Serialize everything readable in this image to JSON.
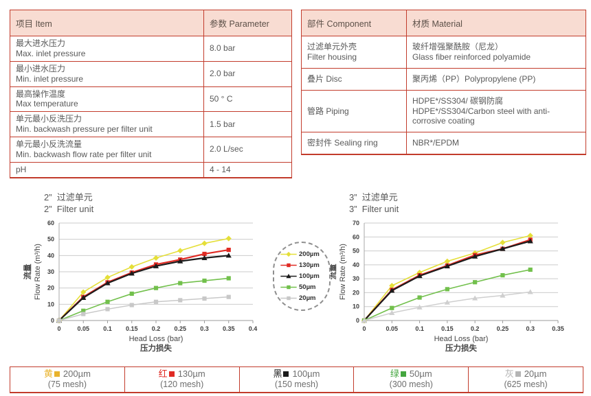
{
  "colors": {
    "table_border": "#c23b2b",
    "table_header_bg": "#f8dcd2",
    "body_text": "#595959"
  },
  "param_table": {
    "headers": [
      "项目 Item",
      "参数 Parameter"
    ],
    "rows": [
      {
        "c1": [
          "最大进水压力",
          "Max. inlet pressure"
        ],
        "c2": [
          "8.0 bar"
        ]
      },
      {
        "c1": [
          "最小进水压力",
          "Min. inlet pressure"
        ],
        "c2": [
          "2.0 bar"
        ]
      },
      {
        "c1": [
          "最高操作温度",
          "Max temperature"
        ],
        "c2": [
          "50 ° C"
        ]
      },
      {
        "c1": [
          "单元最小反洗压力",
          "Min. backwash pressure per filter unit"
        ],
        "c2": [
          "1.5 bar"
        ]
      },
      {
        "c1": [
          "单元最小反洗流量",
          "Min. backwash flow rate per filter unit"
        ],
        "c2": [
          "2.0 L/sec"
        ]
      },
      {
        "c1": [
          "pH"
        ],
        "c2": [
          "4 - 14"
        ]
      }
    ]
  },
  "material_table": {
    "headers": [
      "部件 Component",
      "材质 Material"
    ],
    "rows": [
      {
        "c1": [
          "过滤单元外壳",
          "Filter housing"
        ],
        "c2": [
          "玻纤增强聚酰胺（尼龙）",
          "Glass fiber reinforced polyamide"
        ]
      },
      {
        "c1": [
          "叠片 Disc"
        ],
        "c2": [
          "聚丙烯（PP）Polypropylene (PP)"
        ]
      },
      {
        "c1": [
          "管路 Piping"
        ],
        "c2": [
          "HDPE*/SS304/ 碳钢防腐",
          "HDPE*/SS304/Carbon steel with anti-corrosive coating"
        ]
      },
      {
        "c1": [
          "密封件 Sealing ring"
        ],
        "c2": [
          "NBR*/EPDM"
        ]
      }
    ]
  },
  "chart_data": [
    {
      "type": "line",
      "title_zh": "2”  过滤单元",
      "title_en": "2”  Filter unit",
      "xlabel_en": "Head Loss (bar)",
      "xlabel_zh": "压力损失",
      "ylabel_zh": "流量",
      "ylabel_en": "Flow Rate (m³/h)",
      "xlim": [
        0,
        0.4
      ],
      "ylim": [
        0,
        60
      ],
      "xticks": [
        0,
        0.05,
        0.1,
        0.15,
        0.2,
        0.25,
        0.3,
        0.35,
        0.4
      ],
      "yticks": [
        0,
        10,
        20,
        30,
        40,
        50,
        60
      ],
      "grid": "horizontal",
      "x": [
        0,
        0.05,
        0.1,
        0.15,
        0.2,
        0.25,
        0.3,
        0.35
      ],
      "series": [
        {
          "name": "200µm",
          "color": "#e5df38",
          "marker": "diamond",
          "width": 1.6,
          "values": [
            0,
            17.5,
            26.5,
            33,
            38.5,
            43,
            47.5,
            50.5
          ]
        },
        {
          "name": "130µm",
          "color": "#e02b24",
          "marker": "square",
          "width": 2.2,
          "values": [
            0,
            14.5,
            23.5,
            29.5,
            34.5,
            37.5,
            41,
            43.5
          ]
        },
        {
          "name": "100µm",
          "color": "#1c1c1c",
          "marker": "triangle",
          "width": 2.2,
          "values": [
            0,
            14,
            23,
            29,
            33.5,
            36.5,
            38.5,
            40
          ]
        },
        {
          "name": "50µm",
          "color": "#72c04c",
          "marker": "square",
          "width": 1.6,
          "values": [
            0,
            6,
            11.5,
            16.5,
            20,
            23,
            24.5,
            26
          ]
        },
        {
          "name": "20µm",
          "color": "#c8c8c8",
          "marker": "square",
          "width": 1.5,
          "values": [
            0,
            4,
            7,
            9.5,
            11.5,
            12.5,
            13.5,
            14.5
          ]
        }
      ]
    },
    {
      "type": "line",
      "title_zh": "3”  过滤单元",
      "title_en": "3”  Filter unit",
      "xlabel_en": "Head Loss (bar)",
      "xlabel_zh": "压力损失",
      "ylabel_zh": "流量",
      "ylabel_en": "Flow Rate (m³/h)",
      "xlim": [
        0,
        0.35
      ],
      "ylim": [
        0,
        70
      ],
      "xticks": [
        0,
        0.05,
        0.1,
        0.15,
        0.2,
        0.25,
        0.3,
        0.35
      ],
      "yticks": [
        0,
        10,
        20,
        30,
        40,
        50,
        60,
        70
      ],
      "grid": "horizontal",
      "x": [
        0,
        0.05,
        0.1,
        0.15,
        0.2,
        0.25,
        0.3
      ],
      "series": [
        {
          "name": "200µm",
          "color": "#e5df38",
          "marker": "diamond",
          "width": 1.6,
          "values": [
            0,
            25,
            34.5,
            42.5,
            48.5,
            56,
            61
          ]
        },
        {
          "name": "130µm",
          "color": "#e02b24",
          "marker": "square",
          "width": 2.2,
          "values": [
            0,
            22,
            32.5,
            39.5,
            47,
            51.5,
            58
          ]
        },
        {
          "name": "100µm",
          "color": "#1c1c1c",
          "marker": "triangle",
          "width": 2.2,
          "values": [
            0,
            21.5,
            32,
            39,
            46,
            51.5,
            57
          ]
        },
        {
          "name": "50µm",
          "color": "#72c04c",
          "marker": "square",
          "width": 1.6,
          "values": [
            0,
            9,
            16.5,
            22.5,
            27.5,
            32.5,
            36.5
          ]
        },
        {
          "name": "20µm",
          "color": "#cfcfcf",
          "marker": "triangle",
          "width": 1.5,
          "values": [
            0,
            5.5,
            9.5,
            13,
            16,
            18,
            20.5
          ]
        }
      ]
    }
  ],
  "mid_legend": {
    "entries": [
      {
        "label": "200µm",
        "color": "#e5df38",
        "marker": "diamond"
      },
      {
        "label": "130µm",
        "color": "#e02b24",
        "marker": "square"
      },
      {
        "label": "100µm",
        "color": "#1c1c1c",
        "marker": "triangle"
      },
      {
        "label": "50µm",
        "color": "#72c04c",
        "marker": "square"
      },
      {
        "label": "20µm",
        "color": "#c8c8c8",
        "marker": "square"
      }
    ]
  },
  "bottom_legend": {
    "cells": [
      {
        "color_char": "黄",
        "color": "#e9b32c",
        "size": "200µm",
        "mesh": "(75 mesh)"
      },
      {
        "color_char": "红",
        "color": "#e02b24",
        "size": "130µm",
        "mesh": "(120 mesh)"
      },
      {
        "color_char": "黑",
        "color": "#1c1c1c",
        "size": "100µm",
        "mesh": "(150 mesh)"
      },
      {
        "color_char": "绿",
        "color": "#44a63f",
        "size": "50µm",
        "mesh": "(300 mesh)"
      },
      {
        "color_char": "灰",
        "color": "#b5b5b5",
        "size": "20µm",
        "mesh": "(625 mesh)"
      }
    ]
  }
}
